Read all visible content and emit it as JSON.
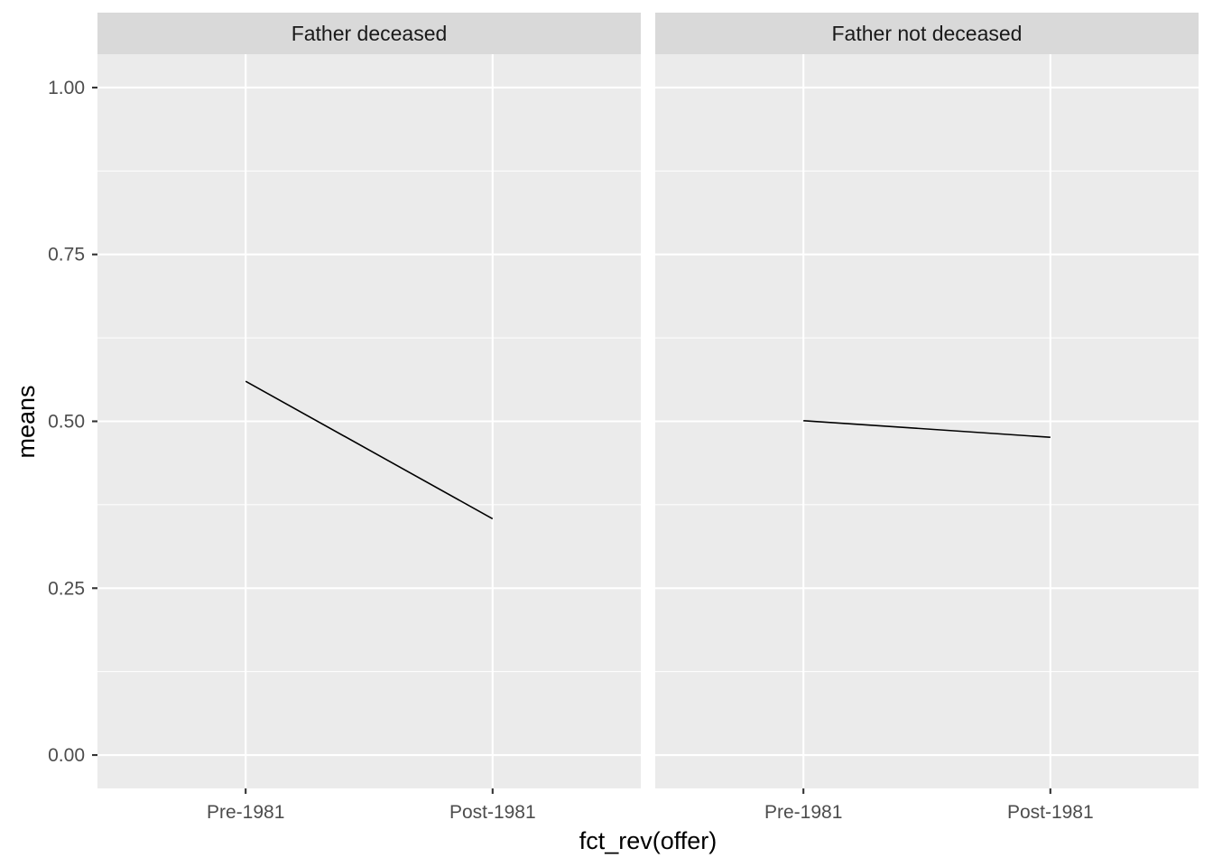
{
  "chart_data": {
    "type": "line",
    "xlabel": "fct_rev(offer)",
    "ylabel": "means",
    "categories": [
      "Pre-1981",
      "Post-1981"
    ],
    "ylim": [
      -0.05,
      1.05
    ],
    "yticks": [
      0.0,
      0.25,
      0.5,
      0.75,
      1.0
    ],
    "ytick_labels": [
      "0.00",
      "0.25",
      "0.50",
      "0.75",
      "1.00"
    ],
    "grid": true,
    "facets": [
      {
        "label": "Father deceased",
        "values": [
          0.56,
          0.354
        ]
      },
      {
        "label": "Father not deceased",
        "values": [
          0.501,
          0.476
        ]
      }
    ],
    "colors": {
      "panel_background": "#ebebeb",
      "strip_background": "#d9d9d9",
      "grid": "#ffffff",
      "line": "#000000"
    }
  }
}
